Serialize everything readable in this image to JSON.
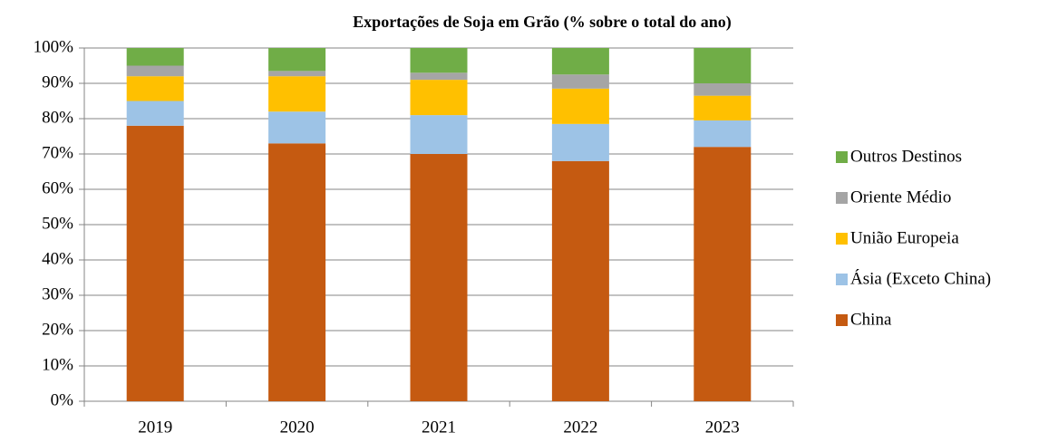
{
  "chart_data": {
    "type": "stacked_bar",
    "title": "Exportações de Soja em Grão (% sobre o total do ano)",
    "categories": [
      "2019",
      "2020",
      "2021",
      "2022",
      "2023"
    ],
    "series": [
      {
        "name": "China",
        "color": "#c55a11",
        "values": [
          78,
          73,
          70,
          68,
          72
        ]
      },
      {
        "name": "Ásia (Exceto China)",
        "color": "#9dc3e6",
        "values": [
          7,
          9,
          11,
          10.5,
          7.5
        ]
      },
      {
        "name": "União Europeia",
        "color": "#ffc000",
        "values": [
          7,
          10,
          10,
          10,
          7
        ]
      },
      {
        "name": "Oriente Médio",
        "color": "#a5a5a5",
        "values": [
          3,
          1.5,
          2,
          4,
          3.5
        ]
      },
      {
        "name": "Outros Destinos",
        "color": "#70ad47",
        "values": [
          5,
          6.5,
          7,
          7.5,
          10
        ]
      }
    ],
    "ylim": [
      0,
      100
    ],
    "yticks": [
      {
        "value": 0,
        "label": "0%"
      },
      {
        "value": 10,
        "label": "10%"
      },
      {
        "value": 20,
        "label": "20%"
      },
      {
        "value": 30,
        "label": "30%"
      },
      {
        "value": 40,
        "label": "40%"
      },
      {
        "value": 50,
        "label": "50%"
      },
      {
        "value": 60,
        "label": "60%"
      },
      {
        "value": 70,
        "label": "70%"
      },
      {
        "value": 80,
        "label": "80%"
      },
      {
        "value": 90,
        "label": "90%"
      },
      {
        "value": 100,
        "label": "100%"
      }
    ],
    "grid": true,
    "legend": "right"
  }
}
